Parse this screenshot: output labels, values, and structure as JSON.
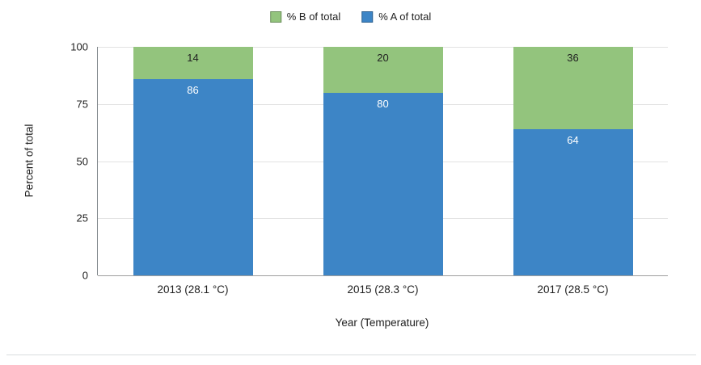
{
  "chart_data": {
    "type": "bar",
    "stacked": true,
    "title": "",
    "categories": [
      "2013 (28.1 °C)",
      "2015 (28.3 °C)",
      "2017 (28.5 °C)"
    ],
    "series": [
      {
        "name": "% A of total",
        "color": "#3d85c6",
        "label_color": "#ffffff",
        "values": [
          86,
          80,
          64
        ]
      },
      {
        "name": "% B of total",
        "color": "#93c47d",
        "label_color": "#212121",
        "values": [
          14,
          20,
          36
        ]
      }
    ],
    "legend": [
      {
        "label": "% B of total",
        "color": "#93c47d"
      },
      {
        "label": "% A of total",
        "color": "#3d85c6"
      }
    ],
    "legend_position": "top",
    "xlabel": "Year (Temperature)",
    "ylabel": "Percent of total",
    "yticks": [
      0,
      25,
      50,
      75,
      100
    ],
    "ylim": [
      0,
      100
    ],
    "grid": true
  }
}
